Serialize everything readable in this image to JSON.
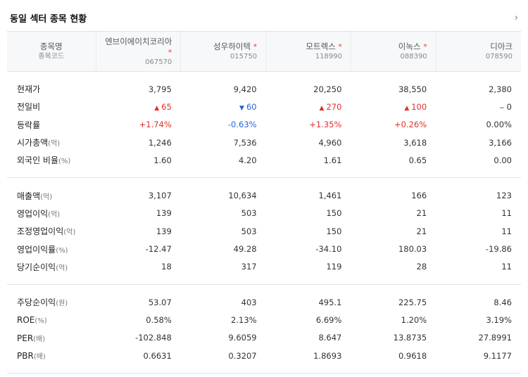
{
  "header": {
    "title": "동일 섹터 종목 현황",
    "more_icon": "chevron-right"
  },
  "columns_header": {
    "name": "종목명",
    "code": "종목코드"
  },
  "stocks": [
    {
      "name": "엔브이에이치코리아",
      "star": "*",
      "code": "067570"
    },
    {
      "name": "성우하이텍",
      "star": "*",
      "code": "015750"
    },
    {
      "name": "모트렉스",
      "star": "*",
      "code": "118990"
    },
    {
      "name": "이녹스",
      "star": "*",
      "code": "088390"
    },
    {
      "name": "디아크",
      "star": "",
      "code": "078590"
    }
  ],
  "rows": [
    {
      "label": "현재가",
      "unit": "",
      "values": [
        "3,795",
        "9,420",
        "20,250",
        "38,550",
        "2,380"
      ]
    },
    {
      "label": "전일비",
      "unit": "",
      "values": [
        "65",
        "60",
        "270",
        "100",
        "0"
      ],
      "arrows": [
        "▲",
        "▼",
        "▲",
        "▲",
        "−"
      ],
      "dirs": [
        "up",
        "down",
        "up",
        "up",
        "flat"
      ]
    },
    {
      "label": "등락률",
      "unit": "",
      "values": [
        "+1.74%",
        "-0.63%",
        "+1.35%",
        "+0.26%",
        "0.00%"
      ],
      "dirs": [
        "up",
        "down",
        "up",
        "up",
        "flat"
      ]
    },
    {
      "label": "시가총액",
      "unit": "(억)",
      "values": [
        "1,246",
        "7,536",
        "4,960",
        "3,618",
        "3,166"
      ]
    },
    {
      "label": "외국인 비율",
      "unit": "(%)",
      "values": [
        "1.60",
        "4.20",
        "1.61",
        "0.65",
        "0.00"
      ]
    },
    {
      "label": "매출액",
      "unit": "(억)",
      "values": [
        "3,107",
        "10,634",
        "1,461",
        "166",
        "123"
      ]
    },
    {
      "label": "영업이익",
      "unit": "(억)",
      "values": [
        "139",
        "503",
        "150",
        "21",
        "11"
      ]
    },
    {
      "label": "조정영업이익",
      "unit": "(억)",
      "values": [
        "139",
        "503",
        "150",
        "21",
        "11"
      ]
    },
    {
      "label": "영업이익률",
      "unit": "(%)",
      "values": [
        "-12.47",
        "49.28",
        "-34.10",
        "180.03",
        "-19.86"
      ]
    },
    {
      "label": "당기순이익",
      "unit": "(억)",
      "values": [
        "18",
        "317",
        "119",
        "28",
        "11"
      ]
    },
    {
      "label": "주당순이익",
      "unit": "(원)",
      "values": [
        "53.07",
        "403",
        "495.1",
        "225.75",
        "8.46"
      ]
    },
    {
      "label": "ROE",
      "unit": "(%)",
      "values": [
        "0.58%",
        "2.13%",
        "6.69%",
        "1.20%",
        "3.19%"
      ]
    },
    {
      "label": "PER",
      "unit": "(배)",
      "values": [
        "-102.848",
        "9.6059",
        "8.647",
        "13.8735",
        "27.8991"
      ]
    },
    {
      "label": "PBR",
      "unit": "(배)",
      "values": [
        "0.6631",
        "0.3207",
        "1.8693",
        "0.9618",
        "9.1177"
      ]
    }
  ]
}
